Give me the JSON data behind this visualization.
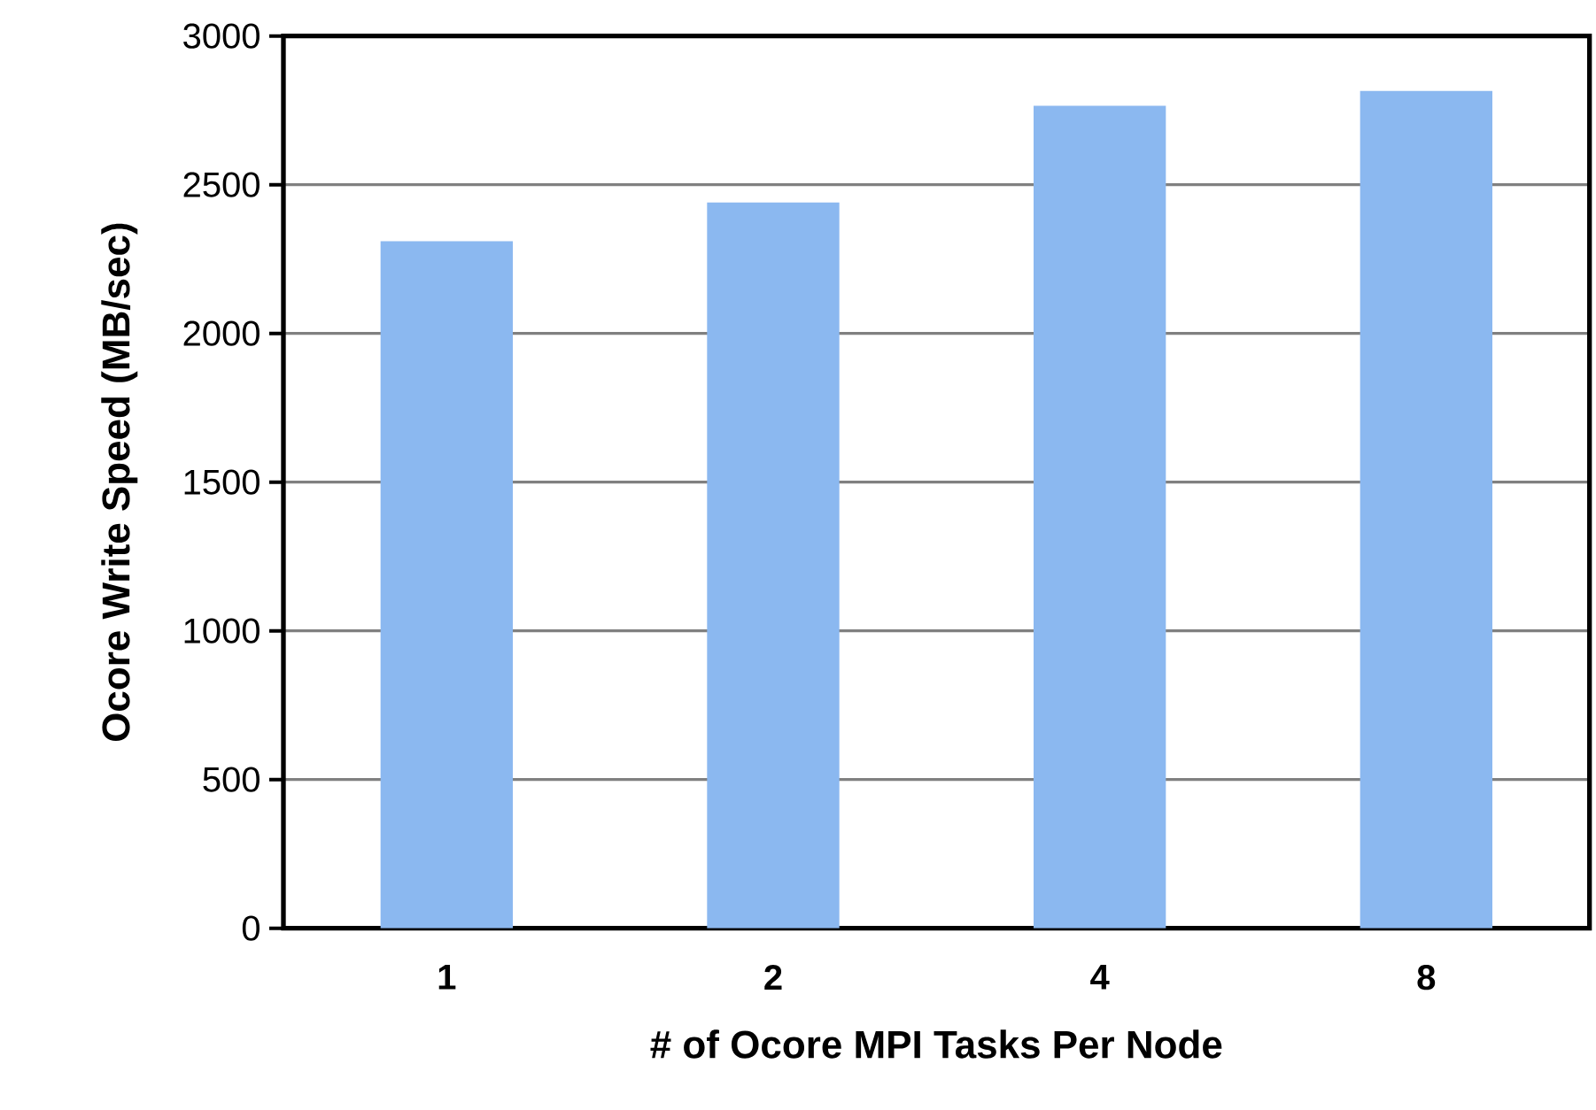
{
  "chart_data": {
    "type": "bar",
    "xlabel": "# of Ocore MPI Tasks Per Node",
    "ylabel": "Ocore Write Speed (MB/sec)",
    "categories": [
      "1",
      "2",
      "4",
      "8"
    ],
    "values": [
      2310,
      2440,
      2765,
      2815
    ],
    "color": "#8bb8f0",
    "ylim": [
      0,
      3000
    ],
    "yticks": [
      0,
      500,
      1000,
      1500,
      2000,
      2500,
      3000
    ],
    "grid": "y"
  }
}
